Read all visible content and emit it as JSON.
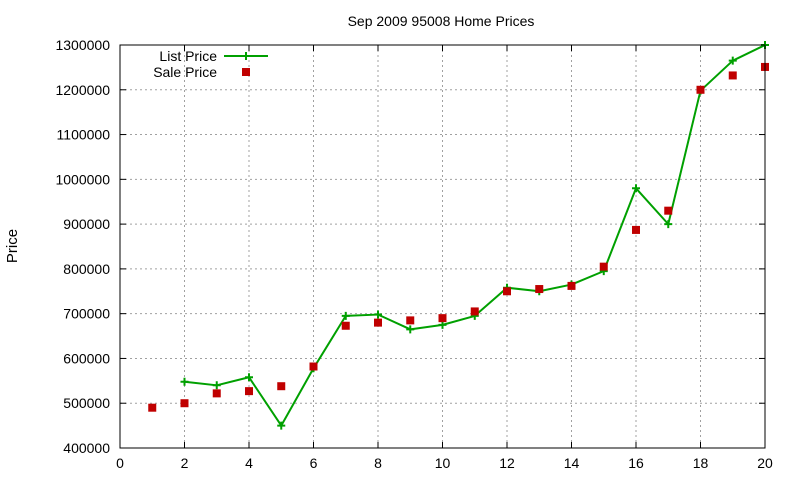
{
  "chart_data": {
    "type": "line",
    "title": "Sep 2009 95008 Home Prices",
    "xlabel": "",
    "ylabel": "Price",
    "xlim": [
      0,
      20
    ],
    "ylim": [
      400000,
      1300000
    ],
    "xticks": [
      0,
      2,
      4,
      6,
      8,
      10,
      12,
      14,
      16,
      18,
      20
    ],
    "yticks": [
      400000,
      500000,
      600000,
      700000,
      800000,
      900000,
      1000000,
      1100000,
      1200000,
      1300000
    ],
    "grid": true,
    "legend_position": "top-left",
    "series": [
      {
        "name": "List Price",
        "style": "line-with-plus-markers",
        "color": "#00a000",
        "x": [
          1,
          2,
          3,
          4,
          5,
          6,
          7,
          8,
          9,
          10,
          11,
          12,
          13,
          14,
          15,
          16,
          17,
          18,
          19,
          20
        ],
        "y": [
          null,
          548000,
          540000,
          558000,
          450000,
          578000,
          695000,
          698000,
          665000,
          675000,
          695000,
          758000,
          750000,
          765000,
          795000,
          980000,
          900000,
          1198000,
          1265000,
          1300000
        ]
      },
      {
        "name": "Sale Price",
        "style": "square-markers",
        "color": "#c00000",
        "x": [
          1,
          2,
          3,
          4,
          5,
          6,
          7,
          8,
          9,
          10,
          11,
          12,
          13,
          14,
          15,
          16,
          17,
          18,
          19,
          20
        ],
        "y": [
          490000,
          500000,
          522000,
          527000,
          538000,
          582000,
          673000,
          680000,
          685000,
          690000,
          705000,
          750000,
          755000,
          762000,
          805000,
          887000,
          930000,
          1200000,
          1232000,
          1251000
        ]
      }
    ]
  }
}
